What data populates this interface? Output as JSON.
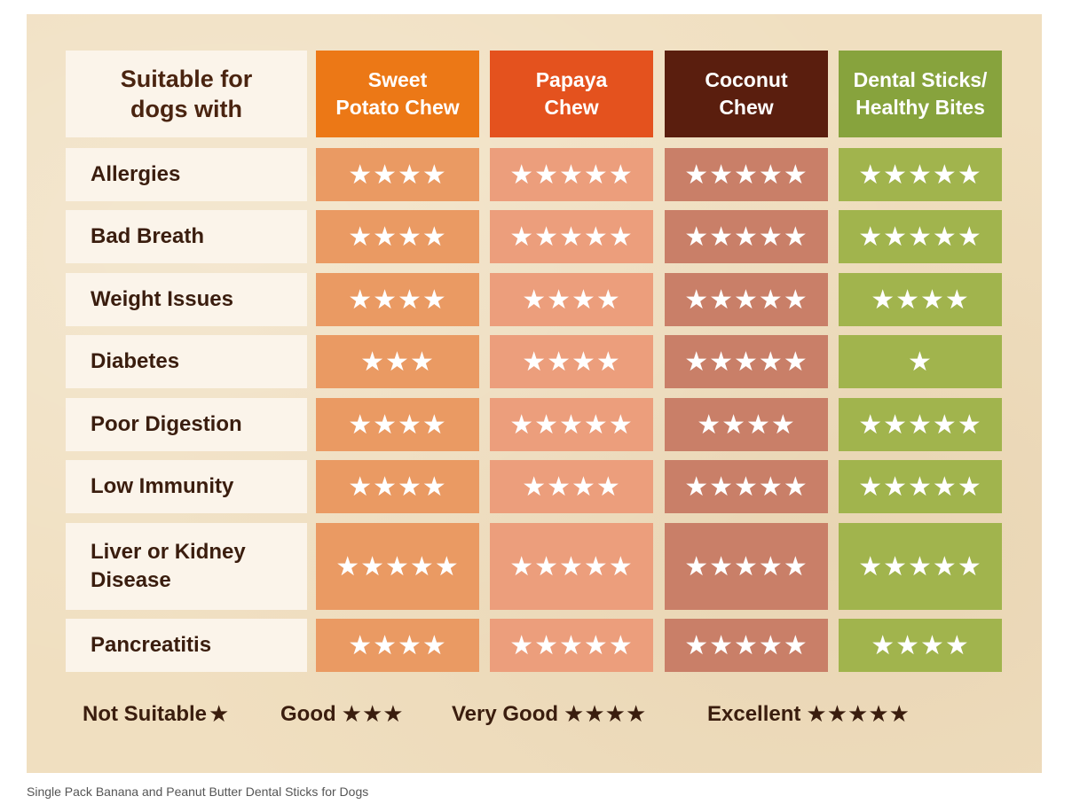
{
  "header": {
    "label_line1": "Suitable for",
    "label_line2": "dogs with"
  },
  "columns": [
    {
      "line1": "Sweet",
      "line2": "Potato Chew",
      "header_color": "#ec7816",
      "cell_color": "#ea9a63"
    },
    {
      "line1": "Papaya",
      "line2": "Chew",
      "header_color": "#e4521e",
      "cell_color": "#ec9e7c"
    },
    {
      "line1": "Coconut",
      "line2": "Chew",
      "header_color": "#5a1e0e",
      "cell_color": "#c97f68"
    },
    {
      "line1": "Dental Sticks/",
      "line2": "Healthy Bites",
      "header_color": "#87a33d",
      "cell_color": "#a1b44d"
    }
  ],
  "rows": [
    {
      "line1": "Allergies",
      "line2": "",
      "ratings": [
        4,
        5,
        5,
        5
      ]
    },
    {
      "line1": "Bad Breath",
      "line2": "",
      "ratings": [
        4,
        5,
        5,
        5
      ]
    },
    {
      "line1": "Weight Issues",
      "line2": "",
      "ratings": [
        4,
        4,
        5,
        4
      ]
    },
    {
      "line1": "Diabetes",
      "line2": "",
      "ratings": [
        3,
        4,
        5,
        1
      ]
    },
    {
      "line1": "Poor Digestion",
      "line2": "",
      "ratings": [
        4,
        5,
        4,
        5
      ]
    },
    {
      "line1": "Low Immunity",
      "line2": "",
      "ratings": [
        4,
        4,
        5,
        5
      ]
    },
    {
      "line1": "Liver or Kidney",
      "line2": "Disease",
      "ratings": [
        5,
        5,
        5,
        5
      ]
    },
    {
      "line1": "Pancreatitis",
      "line2": "",
      "ratings": [
        4,
        5,
        5,
        4
      ]
    }
  ],
  "legend": [
    {
      "label": "Not Suitable",
      "stars": "★"
    },
    {
      "label": "Good",
      "stars": "★★★"
    },
    {
      "label": "Very Good",
      "stars": "★★★★"
    },
    {
      "label": "Excellent",
      "stars": "★★★★★"
    }
  ],
  "caption": "Single Pack Banana and Peanut Butter Dental Sticks for Dogs",
  "colors": {
    "paper": "#f0dfc0",
    "label_bg": "#fbf4ea",
    "text_dark": "#3a1d0e"
  }
}
